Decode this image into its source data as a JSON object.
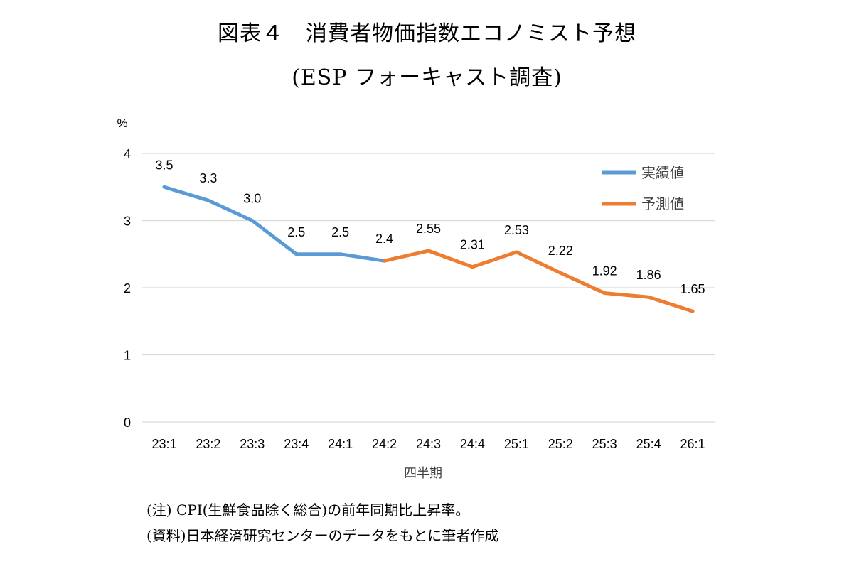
{
  "title_line1": "図表４　消費者物価指数エコノミスト予想",
  "title_line2": "(ESP フォーキャスト調査)",
  "note1": "(注) CPI(生鮮食品除く総合)の前年同期比上昇率。",
  "note2": "(資料)日本経済研究センターのデータをもとに筆者作成",
  "colors": {
    "actual": "#5b9bd5",
    "forecast": "#ed7d31",
    "grid": "#d9d9d9"
  },
  "chart_data": {
    "type": "line",
    "ylabel": "%",
    "xlabel": "四半期",
    "ylim": [
      0,
      4
    ],
    "yticks": [
      "0",
      "1",
      "2",
      "3",
      "4"
    ],
    "grid": true,
    "legend_position": "top-right",
    "categories": [
      "23:1",
      "23:2",
      "23:3",
      "23:4",
      "24:1",
      "24:2",
      "24:3",
      "24:4",
      "25:1",
      "25:2",
      "25:3",
      "25:4",
      "26:1"
    ],
    "series": [
      {
        "name": "実績値",
        "x": [
          "23:1",
          "23:2",
          "23:3",
          "23:4",
          "24:1",
          "24:2"
        ],
        "values": [
          3.5,
          3.3,
          3.0,
          2.5,
          2.5,
          2.4
        ],
        "labels": [
          "3.5",
          "3.3",
          "3.0",
          "2.5",
          "2.5",
          "2.4"
        ]
      },
      {
        "name": "予測値",
        "x": [
          "24:2",
          "24:3",
          "24:4",
          "25:1",
          "25:2",
          "25:3",
          "25:4",
          "26:1"
        ],
        "values": [
          2.4,
          2.55,
          2.31,
          2.53,
          2.22,
          1.92,
          1.86,
          1.65
        ],
        "labels": [
          "",
          "2.55",
          "2.31",
          "2.53",
          "2.22",
          "1.92",
          "1.86",
          "1.65"
        ]
      }
    ]
  }
}
